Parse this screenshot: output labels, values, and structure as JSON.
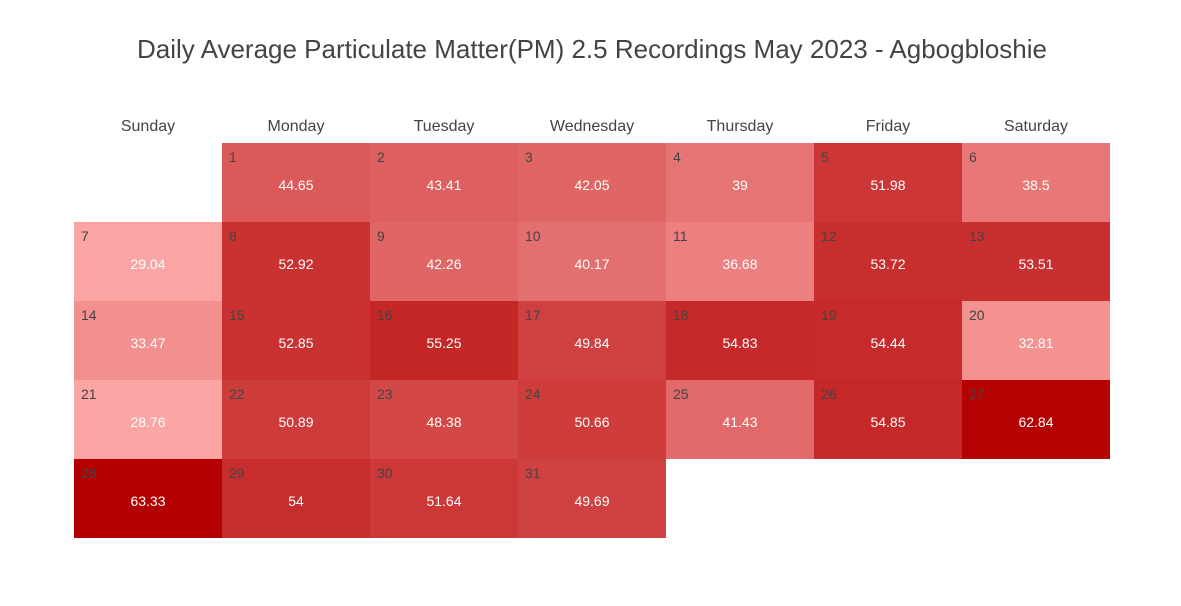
{
  "chart_data": {
    "type": "heatmap",
    "title": "Daily Average Particulate Matter(PM) 2.5 Recordings May 2023 - Agbogbloshie",
    "weekdays": [
      "Sunday",
      "Monday",
      "Tuesday",
      "Wednesday",
      "Thursday",
      "Friday",
      "Saturday"
    ],
    "first_weekday_index": 1,
    "days": [
      1,
      2,
      3,
      4,
      5,
      6,
      7,
      8,
      9,
      10,
      11,
      12,
      13,
      14,
      15,
      16,
      17,
      18,
      19,
      20,
      21,
      22,
      23,
      24,
      25,
      26,
      27,
      28,
      29,
      30,
      31
    ],
    "values": [
      "44.65",
      "43.41",
      "42.05",
      "39",
      "51.98",
      "38.5",
      "29.04",
      "52.92",
      "42.26",
      "40.17",
      "36.68",
      "53.72",
      "53.51",
      "33.47",
      "52.85",
      "55.25",
      "49.84",
      "54.83",
      "54.44",
      "32.81",
      "28.76",
      "50.89",
      "48.38",
      "50.66",
      "41.43",
      "54.85",
      "62.84",
      "63.33",
      "54",
      "51.64",
      "49.69"
    ],
    "colorscale": {
      "low": "#fca5a5",
      "high": "#b40000"
    }
  }
}
